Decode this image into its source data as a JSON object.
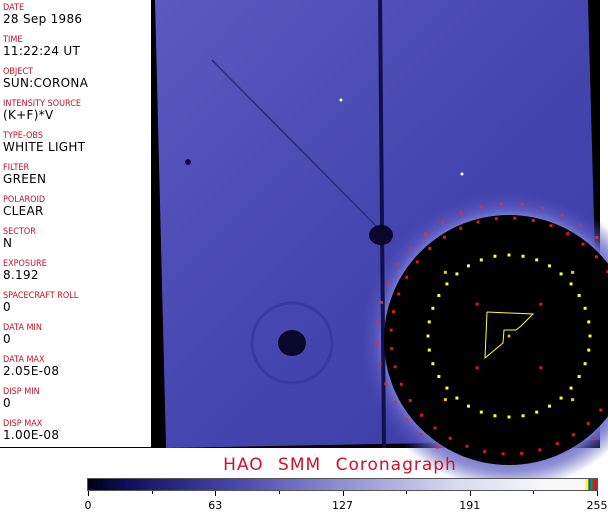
{
  "header_fields": [
    {
      "label": "DATE",
      "value": "28 Sep 1986"
    },
    {
      "label": "TIME",
      "value": "11:22:24 UT"
    },
    {
      "label": "OBJECT",
      "value": "SUN:CORONA"
    },
    {
      "label": "INTENSITY SOURCE",
      "value": "(K+F)*V"
    },
    {
      "label": "TYPE-OBS",
      "value": "WHITE LIGHT"
    },
    {
      "label": "FILTER",
      "value": "GREEN"
    },
    {
      "label": "POLAROID",
      "value": "CLEAR"
    },
    {
      "label": "SECTOR",
      "value": "N"
    },
    {
      "label": "EXPOSURE",
      "value": "8.192"
    },
    {
      "label": "SPACECRAFT ROLL",
      "value": "0"
    },
    {
      "label": "DATA MIN",
      "value": "0"
    },
    {
      "label": "DATA MAX",
      "value": "2.05E-08"
    },
    {
      "label": "DISP MIN",
      "value": "0"
    },
    {
      "label": "DISP MAX",
      "value": "1.00E-08"
    }
  ],
  "title": "HAO  SMM Coronagraph",
  "colorbar": {
    "ticks": [
      "0",
      "63",
      "127",
      "191",
      "255"
    ],
    "range": [
      0,
      255
    ]
  },
  "colors": {
    "label": "#c0102a",
    "background": "#000000",
    "corona": "#4a4ab4",
    "ring_dots": "#ffff30",
    "grid_dots": "#e01818"
  }
}
